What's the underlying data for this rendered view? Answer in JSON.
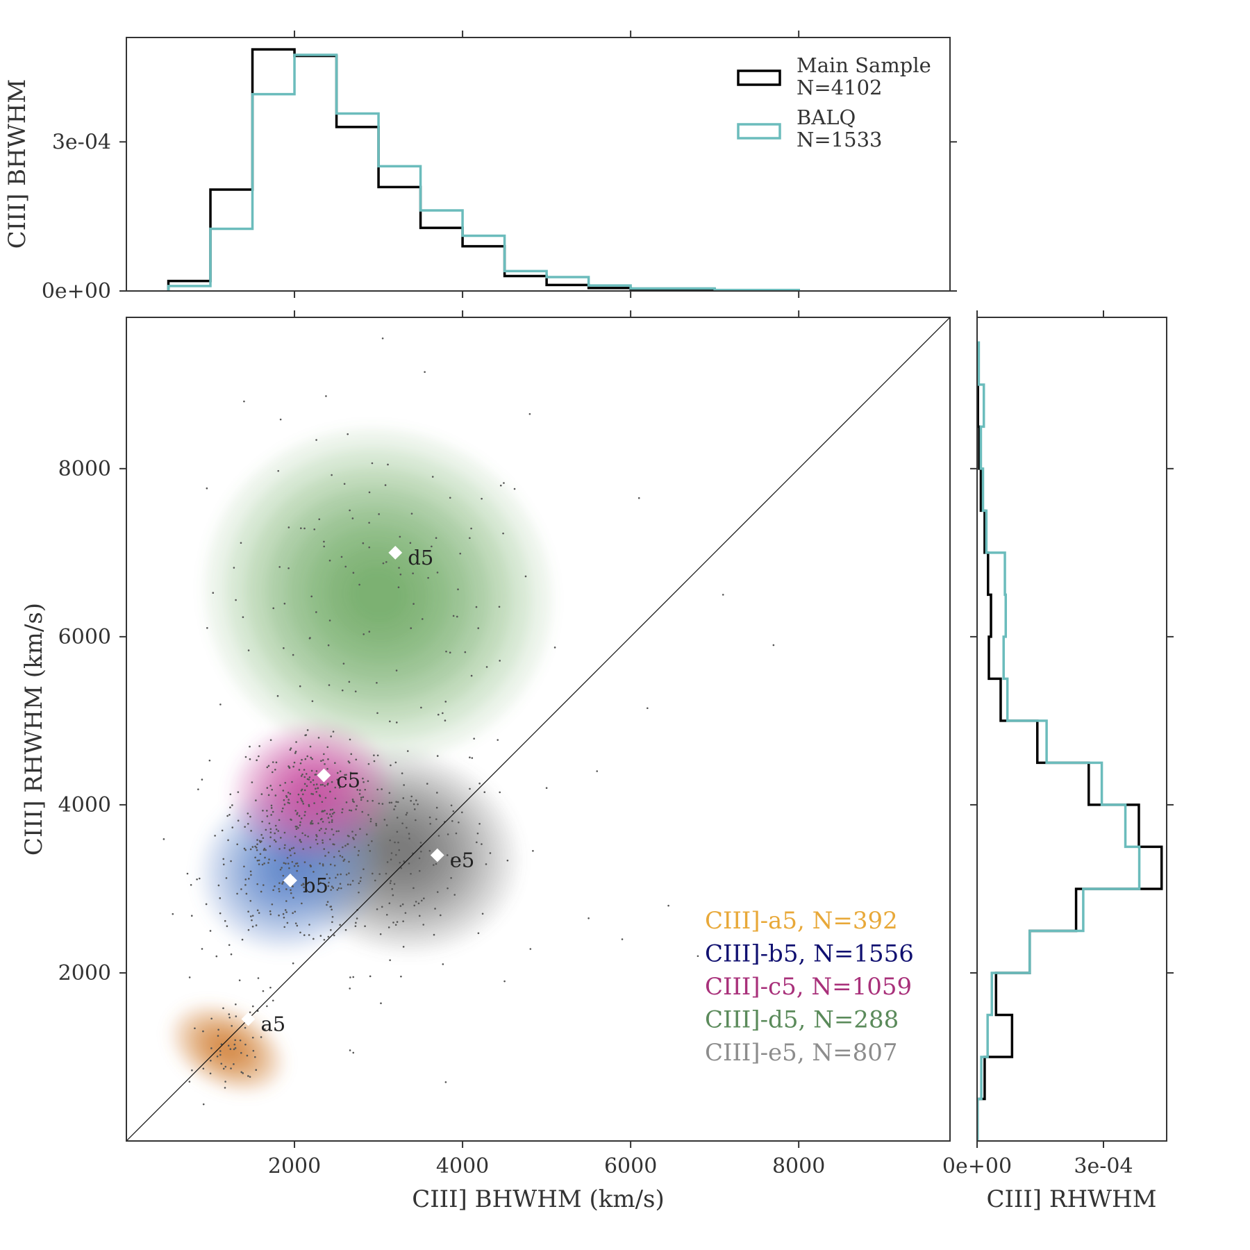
{
  "chart_data": [
    {
      "type": "histogram",
      "panel": "top-marginal",
      "ylabel": "CIII] BHWHM",
      "ylim": [
        0,
        0.00051
      ],
      "xlim": [
        0,
        9800
      ],
      "y_ticks": [
        {
          "value": 0,
          "label": "0e+00"
        },
        {
          "value": 0.0003,
          "label": "3e-04"
        }
      ],
      "bin_edges": [
        500,
        1000,
        1500,
        2000,
        2500,
        3000,
        3500,
        4000,
        4500,
        5000,
        5500,
        6000,
        7000,
        8000
      ],
      "series": [
        {
          "name": "Main Sample",
          "count_label": "N=4102",
          "color": "#000000",
          "values": [
            2e-05,
            0.000204,
            0.000486,
            0.000473,
            0.00033,
            0.000209,
            0.000127,
            9e-05,
            3e-05,
            1.2e-05,
            6e-06,
            3e-06,
            1e-06
          ]
        },
        {
          "name": "BALQ",
          "count_label": "N=1533",
          "color": "#6bbcbc",
          "values": [
            1e-05,
            0.000125,
            0.000396,
            0.000475,
            0.000357,
            0.000251,
            0.000162,
            0.000111,
            4e-05,
            2.8e-05,
            1.1e-05,
            5e-06,
            2e-06
          ]
        }
      ],
      "legend_position": "top-right"
    },
    {
      "type": "histogram",
      "panel": "right-marginal",
      "orientation": "horizontal",
      "xlabel": "CIII] RHWHM",
      "xlim": [
        0,
        0.00045
      ],
      "x_ticks": [
        {
          "value": 0,
          "label": "0e+00"
        },
        {
          "value": 0.0003,
          "label": "3e-04"
        }
      ],
      "bin_edges": [
        0,
        500,
        1000,
        1500,
        2000,
        2500,
        3000,
        3500,
        4000,
        4500,
        5000,
        5500,
        6000,
        6500,
        7000,
        7500,
        8000,
        8500,
        9000,
        9500
      ],
      "series": [
        {
          "name": "Main Sample",
          "color": "#000000",
          "values": [
            1e-06,
            1.8e-05,
            8.3e-05,
            4.5e-05,
            0.000125,
            0.000235,
            0.000438,
            0.000384,
            0.000265,
            0.000143,
            5.6e-05,
            2.8e-05,
            3.3e-05,
            2.6e-05,
            1.8e-05,
            9e-06,
            5e-06,
            2e-06,
            1e-06
          ]
        },
        {
          "name": "BALQ",
          "color": "#6bbcbc",
          "values": [
            1e-06,
            1e-05,
            2.5e-05,
            3.5e-05,
            0.000125,
            0.000252,
            0.000385,
            0.000352,
            0.000296,
            0.000165,
            7.2e-05,
            6.3e-05,
            6.8e-05,
            6.6e-05,
            2.2e-05,
            1.4e-05,
            9e-06,
            1.6e-05,
            4e-06
          ]
        }
      ]
    },
    {
      "type": "scatter",
      "panel": "main",
      "xlabel": "CIII] BHWHM (km/s)",
      "ylabel": "CIII] RHWHM (km/s)",
      "xlim": [
        0,
        9800
      ],
      "ylim": [
        0,
        9800
      ],
      "x_ticks": [
        2000,
        4000,
        6000,
        8000
      ],
      "y_ticks": [
        2000,
        4000,
        6000,
        8000
      ],
      "tick_labels": [
        "2000",
        "4000",
        "6000",
        "8000"
      ],
      "diagonal": "y = x",
      "grid": false,
      "subsets": [
        {
          "label": "CIII]-a5, N=392",
          "name": "a5",
          "color": "#e8a838",
          "cx": 1200,
          "cy": 1100,
          "sx": 210,
          "sy": 320,
          "rho": 0.55,
          "n_points": 60,
          "marker": [
            1450,
            1450
          ]
        },
        {
          "label": "CIII]-b5, N=1556",
          "name": "b5",
          "color": "#101070",
          "cx": 1950,
          "cy": 3250,
          "sx": 480,
          "sy": 430,
          "rho": 0.1,
          "n_points": 260,
          "marker": [
            1950,
            3100
          ]
        },
        {
          "label": "CIII]-c5, N=1059",
          "name": "c5",
          "color": "#a8307a",
          "cx": 2200,
          "cy": 4150,
          "sx": 420,
          "sy": 360,
          "rho": 0.05,
          "n_points": 200,
          "marker": [
            2350,
            4350
          ]
        },
        {
          "label": "CIII]-d5, N=288",
          "name": "d5",
          "color": "#5a8a5a",
          "cx": 3000,
          "cy": 6500,
          "sx": 900,
          "sy": 850,
          "rho": -0.05,
          "n_points": 110,
          "marker": [
            3200,
            7000
          ]
        },
        {
          "label": "CIII]-e5, N=807",
          "name": "e5",
          "color": "#8c8c8c",
          "cx": 3250,
          "cy": 3450,
          "sx": 520,
          "sy": 620,
          "rho": 0.1,
          "n_points": 180,
          "marker": [
            3700,
            3400
          ]
        }
      ],
      "legend_position": "bottom-right"
    }
  ]
}
